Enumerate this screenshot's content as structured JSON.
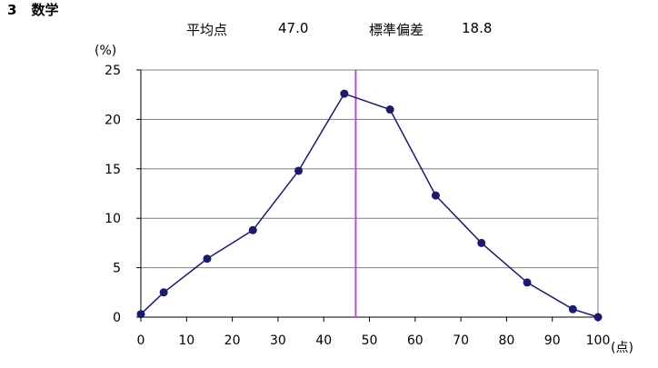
{
  "heading": {
    "number": "3",
    "subject": "数学"
  },
  "stats": {
    "mean_label": "平均点",
    "mean_value": "47.0",
    "sd_label": "標準偏差",
    "sd_value": "18.8"
  },
  "chart_data": {
    "type": "line",
    "title": "",
    "ylabel": "(%)",
    "xlabel": "(点)",
    "xlim": [
      0,
      100
    ],
    "ylim": [
      0,
      25
    ],
    "xticks": [
      0,
      10,
      20,
      30,
      40,
      50,
      60,
      70,
      80,
      90,
      100
    ],
    "yticks": [
      0,
      5,
      10,
      15,
      20,
      25
    ],
    "grid": "horizontal",
    "series": [
      {
        "color": "#1b1a6b",
        "x": [
          0,
          5,
          14.5,
          24.5,
          34.5,
          44.5,
          54.5,
          64.5,
          74.5,
          84.5,
          94.5,
          100
        ],
        "y": [
          0.3,
          2.5,
          5.9,
          8.8,
          14.8,
          22.6,
          21.0,
          12.3,
          7.5,
          3.5,
          0.8,
          0.0
        ]
      }
    ],
    "mean_line": {
      "x": 47.0,
      "color": "#c04ad6"
    }
  }
}
